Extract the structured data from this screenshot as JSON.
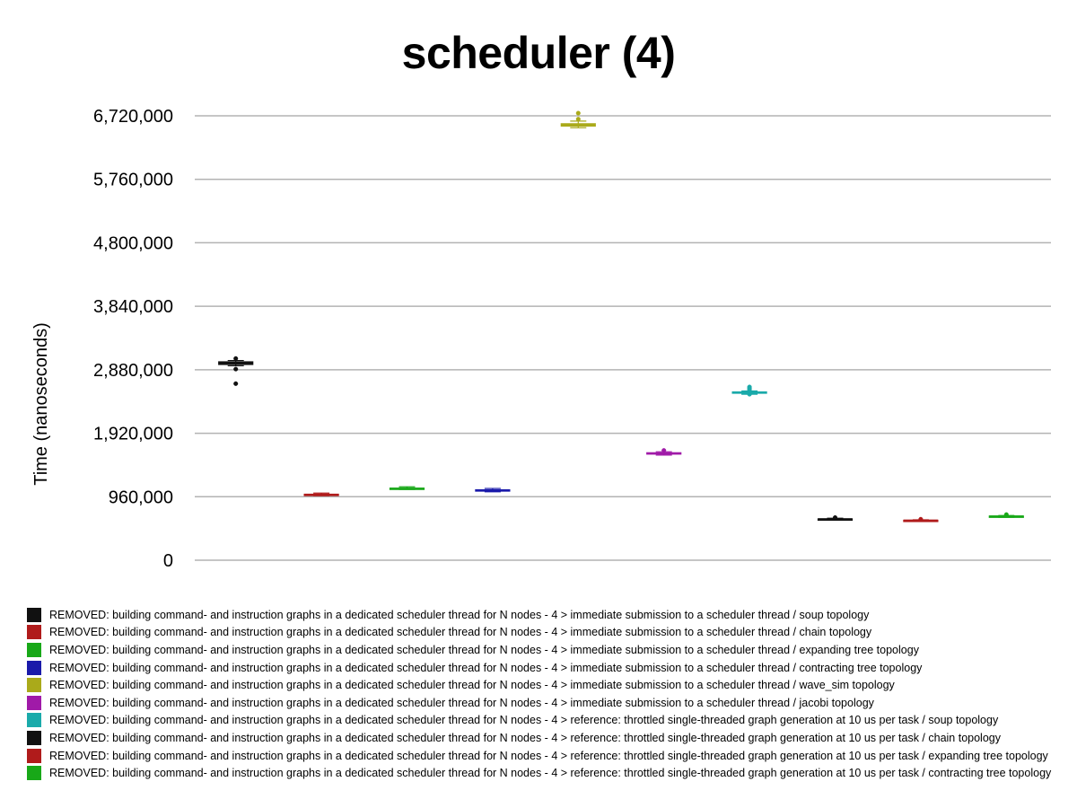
{
  "chart_data": {
    "type": "boxplot",
    "title": "scheduler (4)",
    "xlabel": "",
    "ylabel": "Time (nanoseconds)",
    "ylim": [
      0,
      7000000
    ],
    "yticks": [
      0,
      960000,
      1920000,
      2880000,
      3840000,
      4800000,
      5760000,
      6720000
    ],
    "ytick_labels": [
      "0",
      "960,000",
      "1,920,000",
      "2,880,000",
      "3,840,000",
      "4,800,000",
      "5,760,000",
      "6,720,000"
    ],
    "grid": true,
    "legend_position": "bottom",
    "series": [
      {
        "name": "REMOVED: building command- and instruction graphs in a dedicated scheduler thread for N nodes - 4 > immediate submission to a scheduler thread / soup topology",
        "color": "#111111",
        "min": 2940000,
        "q1": 2960000,
        "median": 2980000,
        "q3": 3000000,
        "max": 3020000,
        "outliers": [
          3050000,
          2890000,
          2670000
        ]
      },
      {
        "name": "REMOVED: building command- and instruction graphs in a dedicated scheduler thread for N nodes - 4 > immediate submission to a scheduler thread / chain topology",
        "color": "#b01b1b",
        "min": 975000,
        "q1": 985000,
        "median": 990000,
        "q3": 998000,
        "max": 1015000,
        "outliers": []
      },
      {
        "name": "REMOVED: building command- and instruction graphs in a dedicated scheduler thread for N nodes - 4 > immediate submission to a scheduler thread / expanding tree topology",
        "color": "#18a818",
        "min": 1070000,
        "q1": 1075000,
        "median": 1080000,
        "q3": 1090000,
        "max": 1110000,
        "outliers": []
      },
      {
        "name": "REMOVED: building command- and instruction graphs in a dedicated scheduler thread for N nodes - 4 > immediate submission to a scheduler thread / contracting tree topology",
        "color": "#1a1aaa",
        "min": 1035000,
        "q1": 1045000,
        "median": 1055000,
        "q3": 1065000,
        "max": 1085000,
        "outliers": []
      },
      {
        "name": "REMOVED: building command- and instruction graphs in a dedicated scheduler thread for N nodes - 4 > immediate submission to a scheduler thread / wave_sim topology",
        "color": "#aaaa1a",
        "min": 6540000,
        "q1": 6565000,
        "median": 6585000,
        "q3": 6600000,
        "max": 6640000,
        "outliers": [
          6670000,
          6760000
        ]
      },
      {
        "name": "REMOVED: building command- and instruction graphs in a dedicated scheduler thread for N nodes - 4 > immediate submission to a scheduler thread / jacobi topology",
        "color": "#a01aa8",
        "min": 1590000,
        "q1": 1605000,
        "median": 1615000,
        "q3": 1625000,
        "max": 1640000,
        "outliers": [
          1660000
        ]
      },
      {
        "name": "REMOVED: building command- and instruction graphs in a dedicated scheduler thread for N nodes - 4 > reference: throttled single-threaded graph generation at 10 us per task / soup topology",
        "color": "#1aaaaa",
        "min": 2510000,
        "q1": 2525000,
        "median": 2535000,
        "q3": 2545000,
        "max": 2560000,
        "outliers": [
          2510000,
          2580000,
          2600000,
          2620000
        ]
      },
      {
        "name": "REMOVED: building command- and instruction graphs in a dedicated scheduler thread for N nodes - 4 > reference: throttled single-threaded graph generation at 10 us per task / chain topology",
        "color": "#111111",
        "min": 610000,
        "q1": 615000,
        "median": 620000,
        "q3": 625000,
        "max": 635000,
        "outliers": [
          645000
        ]
      },
      {
        "name": "REMOVED: building command- and instruction graphs in a dedicated scheduler thread for N nodes - 4 > reference: throttled single-threaded graph generation at 10 us per task / expanding tree topology",
        "color": "#b01b1b",
        "min": 590000,
        "q1": 595000,
        "median": 600000,
        "q3": 605000,
        "max": 612000,
        "outliers": [
          620000
        ]
      },
      {
        "name": "REMOVED: building command- and instruction graphs in a dedicated scheduler thread for N nodes - 4 > reference: throttled single-threaded graph generation at 10 us per task / contracting tree topology",
        "color": "#18a818",
        "min": 650000,
        "q1": 655000,
        "median": 662000,
        "q3": 668000,
        "max": 675000,
        "outliers": [
          690000
        ]
      }
    ]
  }
}
